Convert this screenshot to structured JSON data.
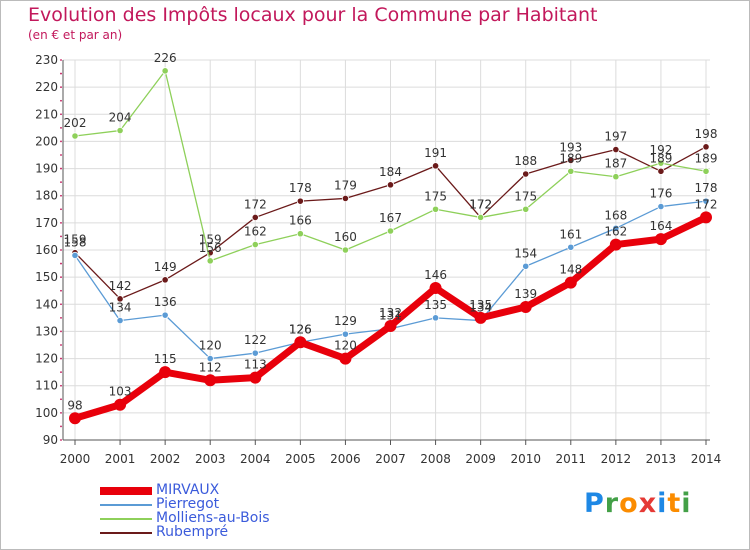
{
  "header": {
    "title": "Evolution des Impôts locaux pour la Commune par Habitant",
    "subtitle": "(en € et par an)"
  },
  "logo": {
    "text": "Proxiti",
    "letters": [
      {
        "ch": "P",
        "color": "#1e88e5"
      },
      {
        "ch": "r",
        "color": "#43a047"
      },
      {
        "ch": "o",
        "color": "#fb8c00"
      },
      {
        "ch": "x",
        "color": "#e53935"
      },
      {
        "ch": "i",
        "color": "#1e88e5"
      },
      {
        "ch": "t",
        "color": "#fb8c00"
      },
      {
        "ch": "i",
        "color": "#43a047"
      }
    ]
  },
  "chart_data": {
    "type": "line",
    "title": "Evolution des Impôts locaux pour la Commune par Habitant",
    "subtitle": "(en € et par an)",
    "xlabel": "",
    "ylabel": "",
    "x": [
      "2000",
      "2001",
      "2002",
      "2003",
      "2004",
      "2005",
      "2006",
      "2007",
      "2008",
      "2009",
      "2010",
      "2011",
      "2012",
      "2013",
      "2014"
    ],
    "ylim": [
      90,
      230
    ],
    "yticks": [
      90,
      100,
      110,
      120,
      130,
      140,
      150,
      160,
      170,
      180,
      190,
      200,
      210,
      220,
      230
    ],
    "grid": true,
    "legend_position": "bottom-left",
    "series": [
      {
        "name": "MIRVAUX",
        "color": "#e8000b",
        "values": [
          98,
          103,
          115,
          112,
          113,
          126,
          120,
          132,
          146,
          135,
          139,
          148,
          162,
          164,
          172
        ]
      },
      {
        "name": "Pierregot",
        "color": "#5b9bd5",
        "values": [
          158,
          134,
          136,
          120,
          122,
          126,
          129,
          131,
          135,
          134,
          154,
          161,
          168,
          176,
          178
        ]
      },
      {
        "name": "Molliens-au-Bois",
        "color": "#8ed05a",
        "values": [
          202,
          204,
          226,
          156,
          162,
          166,
          160,
          167,
          175,
          172,
          175,
          189,
          187,
          192,
          189
        ]
      },
      {
        "name": "Rubempré",
        "color": "#6b1a1a",
        "values": [
          159,
          142,
          149,
          159,
          172,
          178,
          179,
          184,
          191,
          172,
          188,
          193,
          197,
          189,
          198
        ]
      }
    ]
  }
}
